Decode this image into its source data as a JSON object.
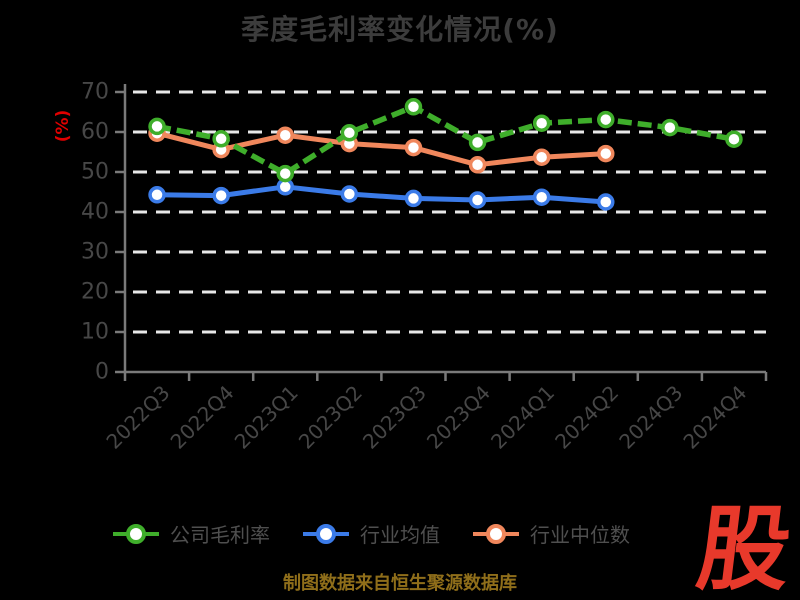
{
  "chart_data": {
    "type": "line",
    "title": "季度毛利率变化情况(%)",
    "ylabel": "(%)",
    "categories": [
      "2022Q3",
      "2022Q4",
      "2023Q1",
      "2023Q2",
      "2023Q3",
      "2023Q4",
      "2024Q1",
      "2024Q2",
      "2024Q3",
      "2024Q4"
    ],
    "yticks": [
      0,
      10,
      20,
      30,
      40,
      50,
      60,
      70
    ],
    "ylim": [
      0,
      70
    ],
    "grid": "horizontal-dashed",
    "legend_position": "bottom",
    "series": [
      {
        "key": "company-gross-margin",
        "name": "公司毛利率",
        "color": "#3fae2b",
        "line_style": "dashed",
        "marker": "white-circle",
        "values": [
          61.4,
          58.3,
          49.6,
          59.8,
          66.3,
          57.4,
          62.2,
          63.1,
          61.1,
          58.2
        ]
      },
      {
        "key": "industry-mean",
        "name": "行业均值",
        "color": "#3b7be8",
        "line_style": "solid",
        "marker": "white-circle",
        "values": [
          44.3,
          44.1,
          46.3,
          44.5,
          43.4,
          43.0,
          43.7,
          42.5,
          null,
          null
        ]
      },
      {
        "key": "industry-median",
        "name": "行业中位数",
        "color": "#f0875c",
        "line_style": "solid",
        "marker": "white-circle",
        "values": [
          59.7,
          55.6,
          59.2,
          57.1,
          56.1,
          51.8,
          53.7,
          54.6,
          null,
          null
        ]
      }
    ]
  },
  "caption": "制图数据来自恒生聚源数据库",
  "logo": {
    "text": "股",
    "color": "#e8392b"
  },
  "colors": {
    "background": "#000000",
    "title": "#3c3c3c",
    "axis": "#7a7a7a",
    "grid": "#e8e8e8",
    "tick_label": "#474747",
    "legend_text": "#4f4f4f",
    "caption": "#8f6e1a",
    "ylabel": "#e00000"
  }
}
